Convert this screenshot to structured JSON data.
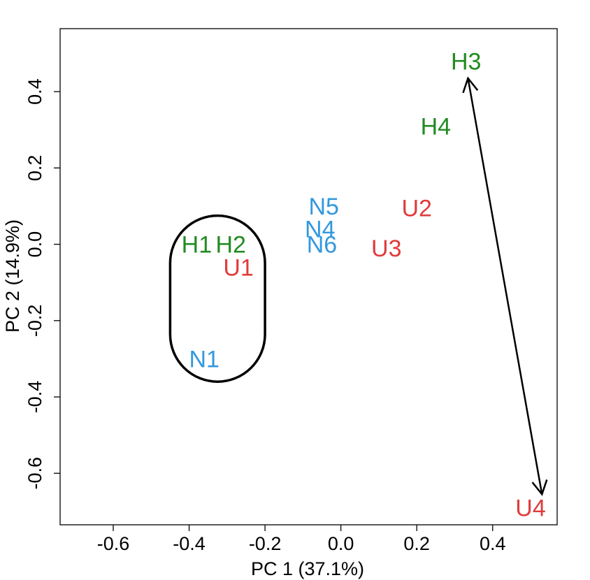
{
  "chart_data": {
    "type": "scatter",
    "title": "",
    "xlabel": "PC 1 (37.1%)",
    "ylabel": "PC 2 (14.9%)",
    "xlim": [
      -0.74,
      0.57
    ],
    "ylim": [
      -0.735,
      0.565
    ],
    "xticks": [
      -0.6,
      -0.4,
      -0.2,
      0.0,
      0.2,
      0.4
    ],
    "xtick_labels": [
      "-0.6",
      "-0.4",
      "-0.2",
      "0.0",
      "0.2",
      "0.4"
    ],
    "yticks": [
      -0.6,
      -0.4,
      -0.2,
      0.0,
      0.2,
      0.4
    ],
    "ytick_labels": [
      "-0.6",
      "-0.4",
      "-0.2",
      "0.0",
      "0.2",
      "0.4"
    ],
    "grid": false,
    "legend": "none",
    "points": [
      {
        "label": "H1",
        "x": -0.38,
        "y": 0.0,
        "color": "#228B22"
      },
      {
        "label": "H2",
        "x": -0.29,
        "y": 0.0,
        "color": "#228B22"
      },
      {
        "label": "H3",
        "x": 0.33,
        "y": 0.48,
        "color": "#228B22"
      },
      {
        "label": "H4",
        "x": 0.25,
        "y": 0.31,
        "color": "#228B22"
      },
      {
        "label": "N1",
        "x": -0.36,
        "y": -0.3,
        "color": "#3399DD"
      },
      {
        "label": "N4",
        "x": -0.055,
        "y": 0.04,
        "color": "#3399DD"
      },
      {
        "label": "N5",
        "x": -0.045,
        "y": 0.1,
        "color": "#3399DD"
      },
      {
        "label": "N6",
        "x": -0.05,
        "y": 0.0,
        "color": "#3399DD"
      },
      {
        "label": "U1",
        "x": -0.27,
        "y": -0.06,
        "color": "#E03C3C"
      },
      {
        "label": "U2",
        "x": 0.2,
        "y": 0.095,
        "color": "#E03C3C"
      },
      {
        "label": "U3",
        "x": 0.12,
        "y": -0.01,
        "color": "#E03C3C"
      },
      {
        "label": "U4",
        "x": 0.5,
        "y": -0.69,
        "color": "#E03C3C"
      }
    ],
    "annotations": [
      {
        "type": "enclosing-loop",
        "x_range": [
          -0.45,
          -0.2
        ],
        "y_range": [
          -0.36,
          0.075
        ],
        "color": "#000000"
      },
      {
        "type": "double-arrow",
        "from": [
          0.335,
          0.435
        ],
        "to": [
          0.53,
          -0.655
        ],
        "color": "#000000"
      }
    ]
  }
}
